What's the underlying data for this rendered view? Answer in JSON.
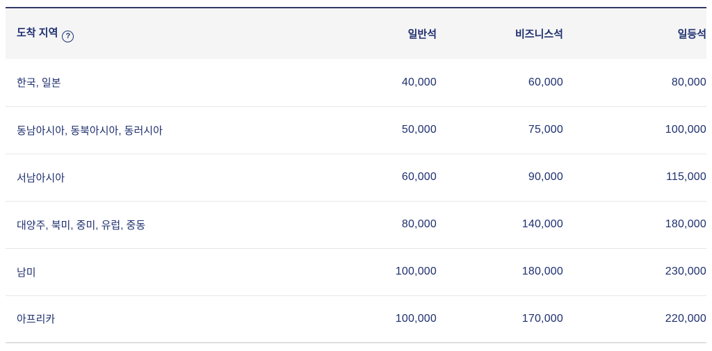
{
  "header": {
    "region_column_label": "도착 지역",
    "help_glyph": "?",
    "seat_columns": [
      "일반석",
      "비즈니스석",
      "일등석"
    ]
  },
  "rows": [
    {
      "region": "한국, 일본",
      "miles": [
        "40,000",
        "60,000",
        "80,000"
      ]
    },
    {
      "region": "동남아시아, 동북아시아, 동러시아",
      "miles": [
        "50,000",
        "75,000",
        "100,000"
      ]
    },
    {
      "region": "서남아시아",
      "miles": [
        "60,000",
        "90,000",
        "115,000"
      ]
    },
    {
      "region": "대양주, 북미, 중미, 유럽, 중동",
      "miles": [
        "80,000",
        "140,000",
        "180,000"
      ]
    },
    {
      "region": "남미",
      "miles": [
        "100,000",
        "180,000",
        "230,000"
      ]
    },
    {
      "region": "아프리카",
      "miles": [
        "100,000",
        "170,000",
        "220,000"
      ]
    }
  ],
  "colors": {
    "navy_text": "#1e2f6e",
    "top_border": "#2f3a64",
    "header_bg": "#f5f5f6",
    "row_border": "#e7e7e9",
    "bottom_border": "#dfdfe2"
  }
}
